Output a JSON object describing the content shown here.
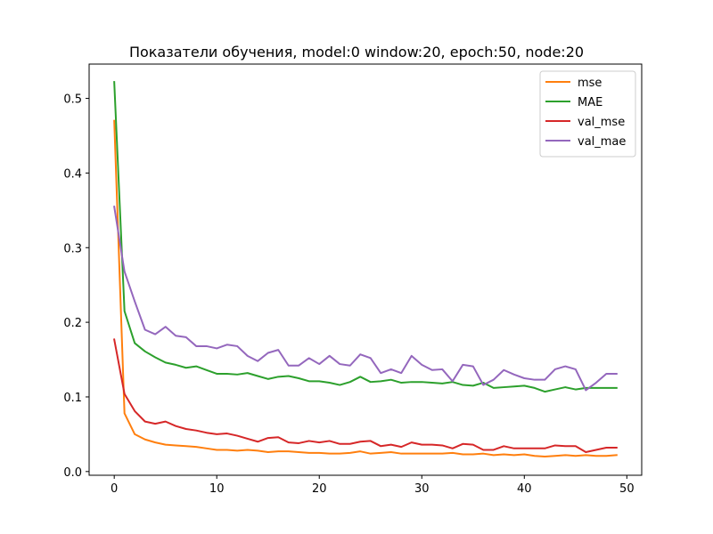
{
  "chart_data": {
    "type": "line",
    "title": "Показатели обучения, model:0 window:20, epoch:50, node:20",
    "xlabel": "",
    "ylabel": "",
    "xlim": [
      -2.45,
      51.45
    ],
    "ylim": [
      -0.005,
      0.546
    ],
    "x_ticks": [
      0,
      10,
      20,
      30,
      40,
      50
    ],
    "y_ticks": [
      0.0,
      0.1,
      0.2,
      0.3,
      0.4,
      0.5
    ],
    "x_tick_labels": [
      "0",
      "10",
      "20",
      "30",
      "40",
      "50"
    ],
    "y_tick_labels": [
      "0.0",
      "0.1",
      "0.2",
      "0.3",
      "0.4",
      "0.5"
    ],
    "legend_position": "top-right",
    "x": [
      0,
      1,
      2,
      3,
      4,
      5,
      6,
      7,
      8,
      9,
      10,
      11,
      12,
      13,
      14,
      15,
      16,
      17,
      18,
      19,
      20,
      21,
      22,
      23,
      24,
      25,
      26,
      27,
      28,
      29,
      30,
      31,
      32,
      33,
      34,
      35,
      36,
      37,
      38,
      39,
      40,
      41,
      42,
      43,
      44,
      45,
      46,
      47,
      48,
      49
    ],
    "series": [
      {
        "name": "mse",
        "color": "#ff7f0e",
        "values": [
          0.47,
          0.078,
          0.05,
          0.043,
          0.039,
          0.036,
          0.035,
          0.034,
          0.033,
          0.031,
          0.029,
          0.029,
          0.028,
          0.029,
          0.028,
          0.026,
          0.027,
          0.027,
          0.026,
          0.025,
          0.025,
          0.024,
          0.024,
          0.025,
          0.027,
          0.024,
          0.025,
          0.026,
          0.024,
          0.024,
          0.024,
          0.024,
          0.024,
          0.025,
          0.023,
          0.023,
          0.024,
          0.022,
          0.023,
          0.022,
          0.023,
          0.021,
          0.02,
          0.021,
          0.022,
          0.021,
          0.022,
          0.021,
          0.021,
          0.022
        ]
      },
      {
        "name": "MAE",
        "color": "#2ca02c",
        "values": [
          0.522,
          0.215,
          0.172,
          0.161,
          0.153,
          0.146,
          0.143,
          0.139,
          0.141,
          0.136,
          0.131,
          0.131,
          0.13,
          0.132,
          0.128,
          0.124,
          0.127,
          0.128,
          0.125,
          0.121,
          0.121,
          0.119,
          0.116,
          0.12,
          0.127,
          0.12,
          0.121,
          0.123,
          0.119,
          0.12,
          0.12,
          0.119,
          0.118,
          0.12,
          0.116,
          0.115,
          0.119,
          0.112,
          0.113,
          0.114,
          0.115,
          0.112,
          0.107,
          0.11,
          0.113,
          0.11,
          0.112,
          0.112,
          0.112,
          0.112
        ]
      },
      {
        "name": "val_mse",
        "color": "#d62728",
        "values": [
          0.177,
          0.104,
          0.081,
          0.067,
          0.064,
          0.067,
          0.061,
          0.057,
          0.055,
          0.052,
          0.05,
          0.051,
          0.048,
          0.044,
          0.04,
          0.045,
          0.046,
          0.039,
          0.038,
          0.041,
          0.039,
          0.041,
          0.037,
          0.037,
          0.04,
          0.041,
          0.034,
          0.036,
          0.033,
          0.039,
          0.036,
          0.036,
          0.035,
          0.031,
          0.037,
          0.036,
          0.029,
          0.029,
          0.034,
          0.031,
          0.031,
          0.031,
          0.031,
          0.035,
          0.034,
          0.034,
          0.026,
          0.029,
          0.032,
          0.032
        ]
      },
      {
        "name": "val_mae",
        "color": "#9467bd",
        "values": [
          0.355,
          0.268,
          0.228,
          0.19,
          0.184,
          0.194,
          0.182,
          0.18,
          0.168,
          0.168,
          0.165,
          0.17,
          0.168,
          0.155,
          0.148,
          0.159,
          0.163,
          0.142,
          0.142,
          0.152,
          0.144,
          0.155,
          0.144,
          0.142,
          0.157,
          0.152,
          0.132,
          0.137,
          0.132,
          0.155,
          0.143,
          0.136,
          0.137,
          0.121,
          0.143,
          0.141,
          0.116,
          0.123,
          0.136,
          0.13,
          0.125,
          0.123,
          0.123,
          0.137,
          0.141,
          0.137,
          0.109,
          0.119,
          0.131,
          0.131
        ]
      }
    ]
  }
}
